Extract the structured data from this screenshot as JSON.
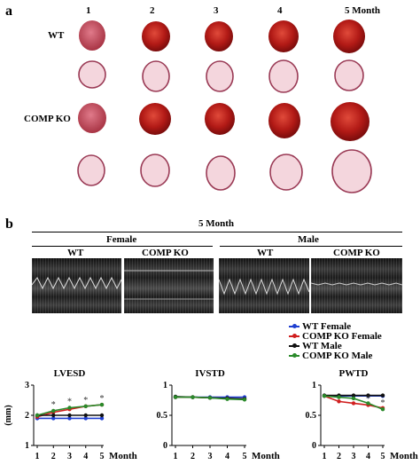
{
  "panel_a": {
    "letter": "a",
    "months": [
      "1",
      "2",
      "3",
      "4",
      "5  Month"
    ],
    "rows": [
      "WT",
      "COMP KO"
    ]
  },
  "panel_b": {
    "letter": "b",
    "header": "5 Month",
    "groups": [
      "Female",
      "Male"
    ],
    "subgroups": [
      "WT",
      "COMP KO",
      "WT",
      "COMP KO"
    ]
  },
  "legend": [
    {
      "label": "WT Female",
      "color": "#1f3fd0"
    },
    {
      "label": "COMP KO Female",
      "color": "#d01f1f"
    },
    {
      "label": "WT Male",
      "color": "#111111"
    },
    {
      "label": "COMP KO Male",
      "color": "#2a8a2a"
    }
  ],
  "chart_data": [
    {
      "type": "line",
      "title": "LVESD",
      "ylabel": "(mm)",
      "xlabel": "Month",
      "x": [
        1,
        2,
        3,
        4,
        5
      ],
      "ylim": [
        1,
        3
      ],
      "yticks": [
        1,
        2,
        3
      ],
      "series": [
        {
          "name": "WT Female",
          "values": [
            1.9,
            1.9,
            1.9,
            1.9,
            1.9
          ]
        },
        {
          "name": "COMP KO Female",
          "values": [
            1.95,
            2.1,
            2.2,
            2.3,
            2.35
          ]
        },
        {
          "name": "WT Male",
          "values": [
            2.0,
            2.0,
            2.0,
            2.0,
            2.0
          ]
        },
        {
          "name": "COMP KO Male",
          "values": [
            2.0,
            2.15,
            2.25,
            2.3,
            2.35
          ]
        }
      ],
      "annotations": [
        "*",
        "*",
        "*",
        "*"
      ]
    },
    {
      "type": "line",
      "title": "IVSTD",
      "xlabel": "Month",
      "x": [
        1,
        2,
        3,
        4,
        5
      ],
      "ylim": [
        0,
        1
      ],
      "yticks": [
        0,
        0.5,
        1
      ],
      "series": [
        {
          "name": "WT Female",
          "values": [
            0.8,
            0.8,
            0.8,
            0.8,
            0.8
          ]
        },
        {
          "name": "COMP KO Female",
          "values": [
            0.8,
            0.8,
            0.79,
            0.78,
            0.77
          ]
        },
        {
          "name": "WT Male",
          "values": [
            0.81,
            0.8,
            0.79,
            0.78,
            0.77
          ]
        },
        {
          "name": "COMP KO Male",
          "values": [
            0.8,
            0.8,
            0.79,
            0.77,
            0.76
          ]
        }
      ],
      "annotations": []
    },
    {
      "type": "line",
      "title": "PWTD",
      "xlabel": "Month",
      "x": [
        1,
        2,
        3,
        4,
        5
      ],
      "ylim": [
        0,
        1
      ],
      "yticks": [
        0,
        0.5,
        1
      ],
      "series": [
        {
          "name": "WT Female",
          "values": [
            0.82,
            0.82,
            0.82,
            0.82,
            0.82
          ]
        },
        {
          "name": "COMP KO Female",
          "values": [
            0.82,
            0.73,
            0.7,
            0.67,
            0.62
          ]
        },
        {
          "name": "WT Male",
          "values": [
            0.83,
            0.83,
            0.83,
            0.83,
            0.83
          ]
        },
        {
          "name": "COMP KO Male",
          "values": [
            0.82,
            0.8,
            0.78,
            0.7,
            0.6
          ]
        }
      ],
      "annotations": [
        "*",
        "*"
      ]
    }
  ]
}
